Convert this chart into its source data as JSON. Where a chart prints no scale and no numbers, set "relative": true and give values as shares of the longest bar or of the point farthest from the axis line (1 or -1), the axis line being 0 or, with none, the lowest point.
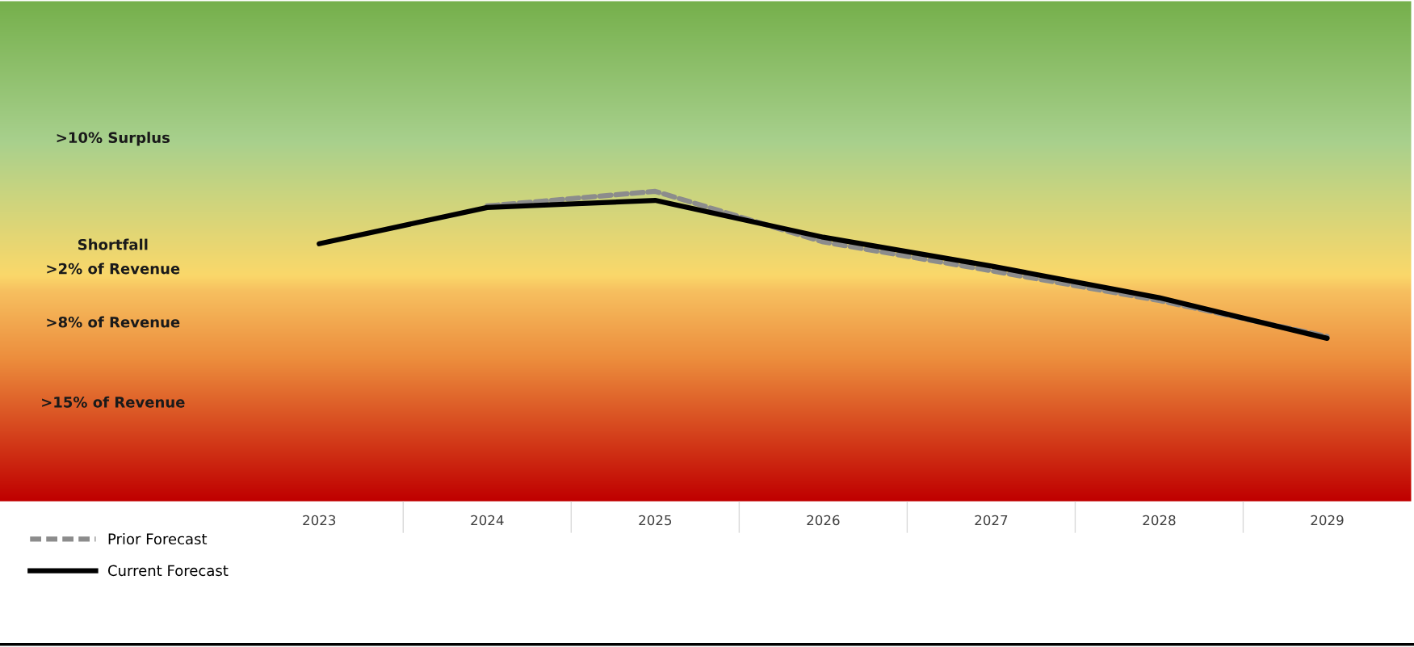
{
  "chart_data": {
    "type": "line",
    "relative": true,
    "categories": [
      "2023",
      "2024",
      "2025",
      "2026",
      "2027",
      "2028",
      "2029"
    ],
    "series": [
      {
        "name": "Prior Forecast",
        "color": "#8c8c8c",
        "line_style": "dashed",
        "values": [
          null,
          0.953,
          1.0,
          0.837,
          0.744,
          0.648,
          0.532
        ]
      },
      {
        "name": "Current Forecast",
        "color": "#000000",
        "line_style": "solid",
        "values": [
          0.831,
          0.948,
          0.971,
          0.852,
          0.759,
          0.657,
          0.526
        ]
      }
    ],
    "annotations": [
      ">10% Surplus",
      "Shortfall\n>2% of Revenue",
      ">8% of Revenue",
      ">15% of Revenue"
    ],
    "legend": "bottom left",
    "grid": false,
    "marker": "none"
  }
}
